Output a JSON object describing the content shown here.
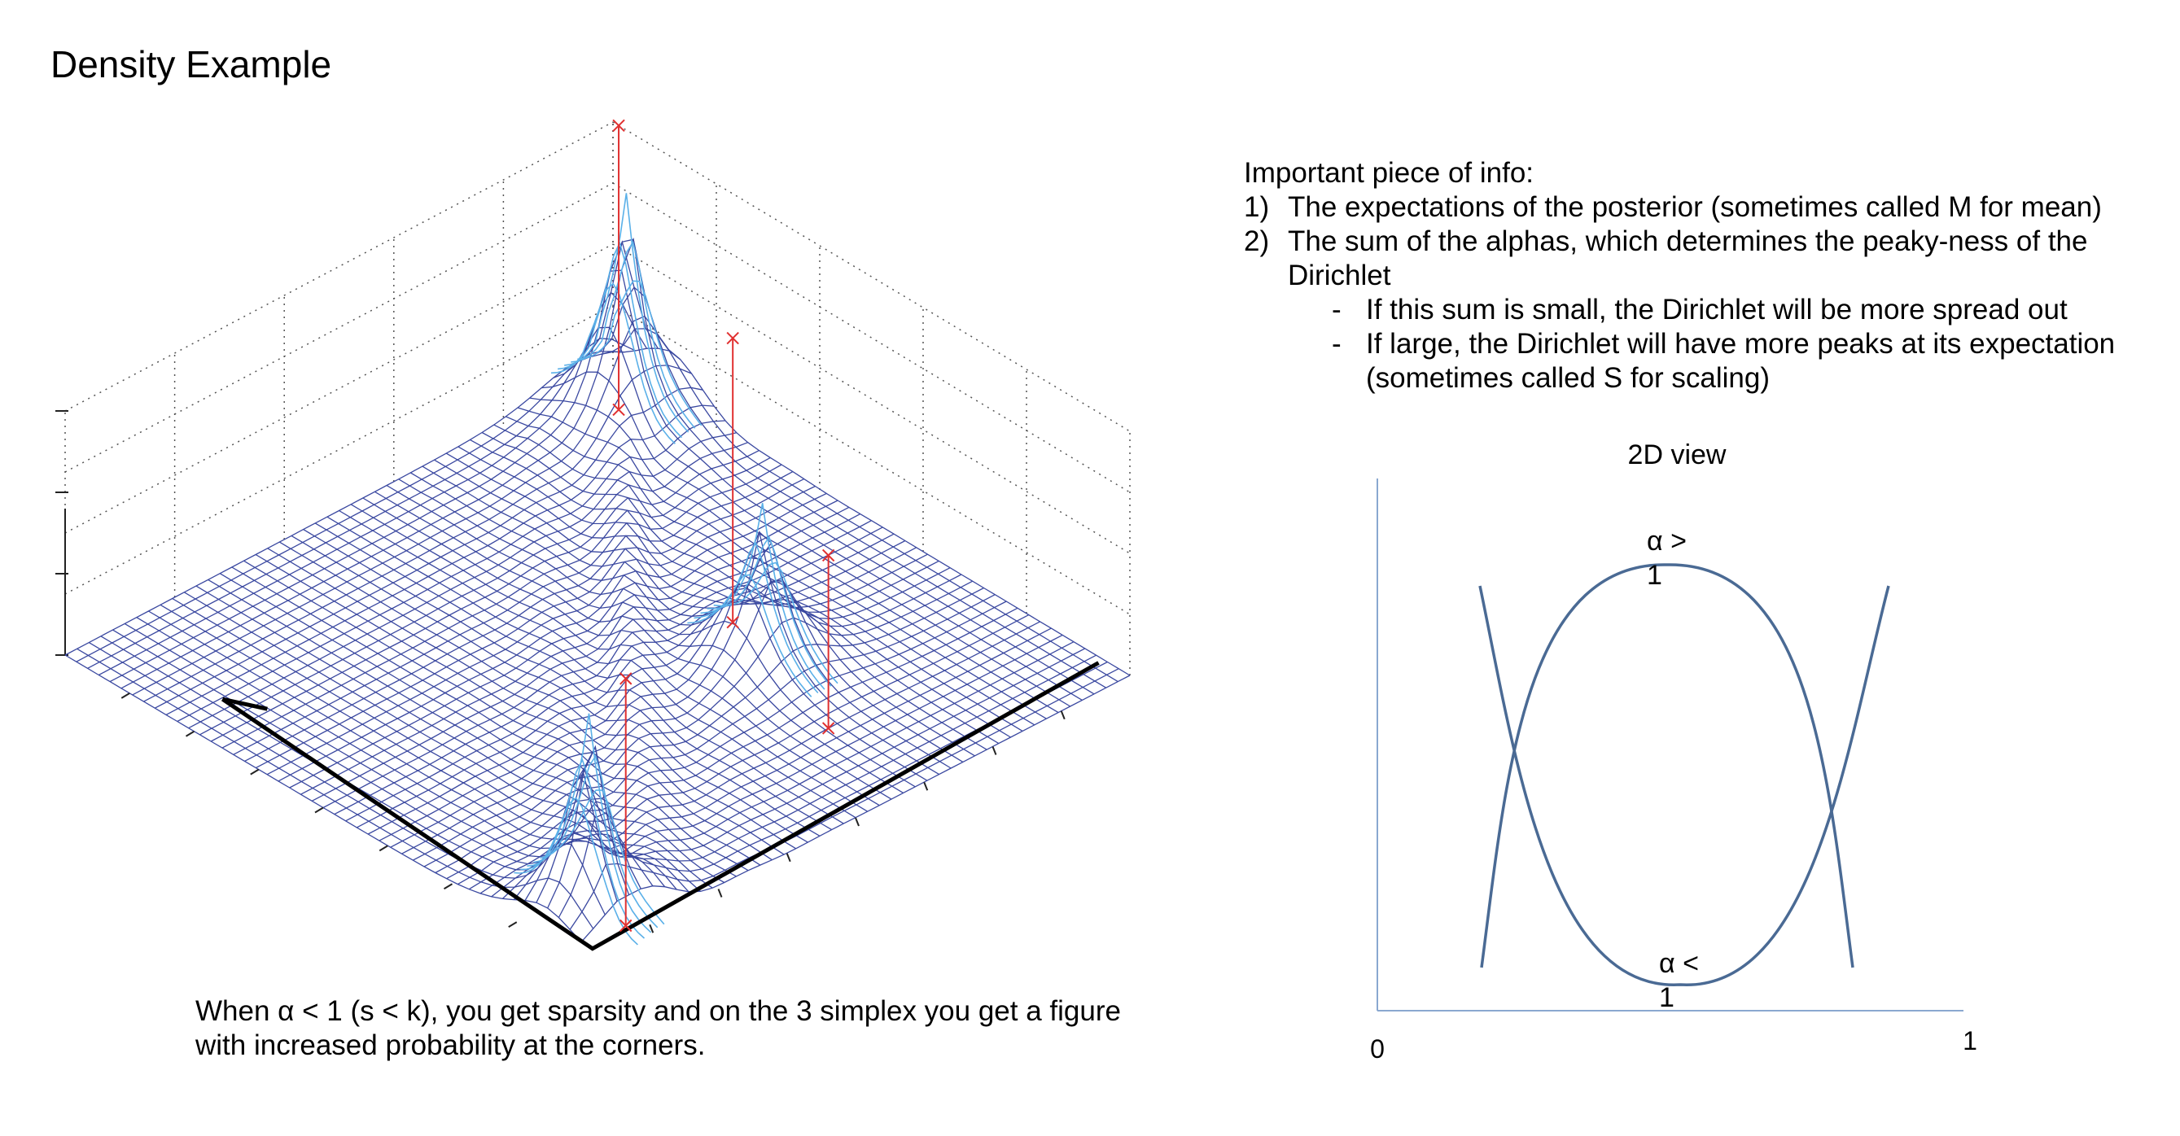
{
  "title": "Density Example",
  "caption": "When α < 1 (s < k), you get sparsity and on the 3 simplex you get a figure with increased probability at the corners.",
  "info": {
    "heading": "Important piece of info:",
    "points": [
      {
        "num": "1)",
        "text": "The expectations of the posterior (sometimes called M for mean)"
      },
      {
        "num": "2)",
        "text": "The sum of the alphas, which determines the peaky-ness of the Dirichlet"
      }
    ],
    "subpoints": [
      {
        "bullet": "-",
        "text": "If this sum is small, the Dirichlet will be more spread out"
      },
      {
        "bullet": "-",
        "text": "If large, the Dirichlet will have more peaks at its expectation (sometimes called S for scaling)"
      }
    ]
  },
  "view2d": {
    "title": "2D view",
    "x_min_label": "0",
    "x_max_label": "1",
    "curve_high_label": "α > 1",
    "curve_low_label": "α < 1",
    "curve_color": "#4a6a94",
    "axis_color": "#8aa8d0"
  },
  "surface": {
    "grid_color": "#3a48a0",
    "peak_color": "#5ab0e8",
    "marker_color": "#e03030",
    "simplex_color": "#000000"
  }
}
